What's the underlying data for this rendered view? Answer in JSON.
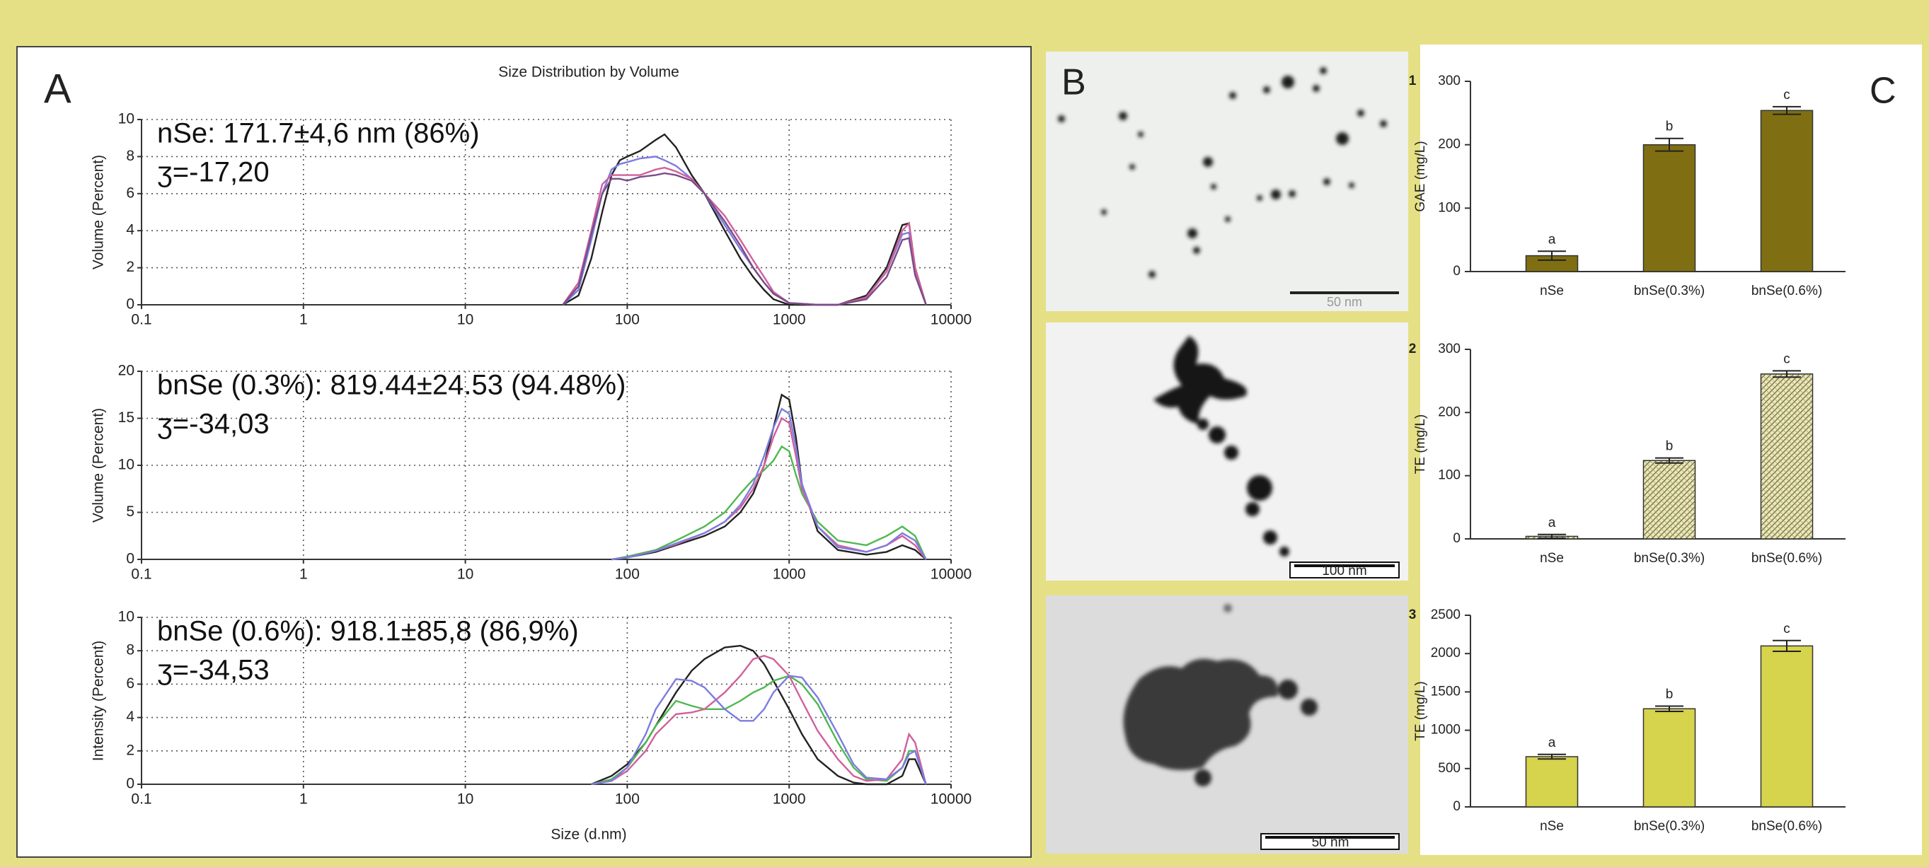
{
  "panels": [
    "A",
    "B",
    "C"
  ],
  "images": [
    {
      "scale_bar": "50 nm"
    },
    {
      "scale_bar": "100 nm"
    },
    {
      "scale_bar": "50 nm"
    }
  ],
  "chart_data": [
    {
      "type": "line",
      "title": "Size Distribution by Volume",
      "ylabel": "Volume (Percent)",
      "log_x": true,
      "grid": true,
      "annotations": [
        "nSe: 171.7±4,6 nm (86%)",
        "ʒ=-17,20"
      ],
      "xlim": [
        0.1,
        10000
      ],
      "xticks": [
        0.1,
        1,
        10,
        100,
        1000,
        10000
      ],
      "ylim": [
        0,
        10
      ],
      "yticks": [
        0,
        2,
        4,
        6,
        8,
        10
      ],
      "x": [
        40,
        50,
        60,
        70,
        80,
        90,
        100,
        120,
        150,
        170,
        200,
        250,
        300,
        400,
        500,
        600,
        700,
        800,
        1000,
        1500,
        2000,
        3000,
        4000,
        5000,
        5500,
        6000,
        7000
      ],
      "series": [
        {
          "color": "#222222",
          "values": [
            0,
            0.5,
            2.5,
            5,
            7,
            7.8,
            8,
            8.3,
            8.9,
            9.2,
            8.5,
            7,
            6,
            4,
            2.5,
            1.5,
            0.8,
            0.3,
            0,
            0,
            0,
            0.5,
            2,
            4.3,
            4.4,
            2,
            0
          ]
        },
        {
          "color": "#7c7ce0",
          "values": [
            0,
            0.8,
            3.5,
            6,
            7.3,
            7.6,
            7.7,
            7.9,
            8,
            7.8,
            7.5,
            6.8,
            6,
            4.3,
            3,
            2,
            1.2,
            0.6,
            0.1,
            0,
            0,
            0.4,
            1.8,
            3.8,
            3.9,
            1.8,
            0
          ]
        },
        {
          "color": "#d0609a",
          "values": [
            0,
            1.2,
            4,
            6.5,
            7,
            7,
            7,
            7,
            7.3,
            7.4,
            7.2,
            6.8,
            6,
            4.8,
            3.5,
            2.4,
            1.5,
            0.7,
            0.1,
            0,
            0,
            0.4,
            1.8,
            4,
            4.4,
            2,
            0
          ]
        },
        {
          "color": "#7a4d8a",
          "values": [
            0,
            1,
            3.8,
            6,
            6.8,
            6.8,
            6.7,
            6.9,
            7,
            7.1,
            7,
            6.7,
            6,
            4.5,
            3.2,
            2,
            1.2,
            0.6,
            0.1,
            0,
            0,
            0.3,
            1.5,
            3.5,
            3.6,
            1.6,
            0
          ]
        }
      ]
    },
    {
      "type": "line",
      "ylabel": "Volume (Percent)",
      "log_x": true,
      "grid": true,
      "annotations": [
        "bnSe (0.3%): 819.44±24.53 (94.48%)",
        "ʒ=-34,03"
      ],
      "xlim": [
        0.1,
        10000
      ],
      "xticks": [
        0.1,
        1,
        10,
        100,
        1000,
        10000
      ],
      "ylim": [
        0,
        20
      ],
      "yticks": [
        0,
        5,
        10,
        15,
        20
      ],
      "x": [
        80,
        100,
        150,
        200,
        300,
        400,
        500,
        600,
        700,
        800,
        900,
        1000,
        1100,
        1200,
        1500,
        2000,
        3000,
        4000,
        5000,
        6000,
        7000
      ],
      "series": [
        {
          "color": "#222222",
          "values": [
            0,
            0.2,
            0.8,
            1.5,
            2.5,
            3.5,
            5,
            7,
            10,
            14,
            17.5,
            17,
            13,
            8,
            3,
            1,
            0.5,
            0.8,
            1.5,
            1,
            0
          ]
        },
        {
          "color": "#4fb84f",
          "values": [
            0,
            0.3,
            1,
            2,
            3.5,
            5,
            7,
            8.5,
            9.5,
            10.5,
            12,
            11.5,
            9,
            7,
            4,
            2,
            1.5,
            2.5,
            3.5,
            2.5,
            0
          ]
        },
        {
          "color": "#d0609a",
          "values": [
            0,
            0.2,
            0.9,
            1.6,
            2.8,
            4,
            5.5,
            7.5,
            10,
            13,
            15,
            14.5,
            11,
            7.5,
            3.5,
            1.5,
            0.8,
            1.5,
            2.5,
            1.5,
            0
          ]
        },
        {
          "color": "#7c7ce0",
          "values": [
            0,
            0.2,
            0.9,
            1.7,
            2.8,
            4,
            5.8,
            8,
            11,
            14,
            16,
            15.5,
            12,
            8,
            3.5,
            1.3,
            0.8,
            1.5,
            2.8,
            2,
            0
          ]
        }
      ]
    },
    {
      "type": "line",
      "ylabel": "Intensity (Percent)",
      "xlabel": "Size (d.nm)",
      "log_x": true,
      "grid": true,
      "annotations": [
        "bnSe (0.6%): 918.1±85,8 (86,9%)",
        "ʒ=-34,53"
      ],
      "xlim": [
        0.1,
        10000
      ],
      "xticks": [
        0.1,
        1,
        10,
        100,
        1000,
        10000
      ],
      "ylim": [
        0,
        10
      ],
      "yticks": [
        0,
        2,
        4,
        6,
        8,
        10
      ],
      "x": [
        60,
        80,
        100,
        130,
        150,
        200,
        250,
        300,
        400,
        500,
        600,
        700,
        800,
        1000,
        1200,
        1500,
        2000,
        2500,
        3000,
        4000,
        5000,
        5500,
        6000,
        7000
      ],
      "series": [
        {
          "color": "#222222",
          "values": [
            0,
            0.5,
            1.2,
            2.5,
            3.5,
            5.5,
            6.8,
            7.5,
            8.2,
            8.3,
            8,
            7.2,
            6.2,
            4.5,
            3,
            1.5,
            0.5,
            0.1,
            0,
            0,
            0.5,
            1.5,
            1.5,
            0
          ]
        },
        {
          "color": "#4fb84f",
          "values": [
            0,
            0.3,
            1,
            2.5,
            3.5,
            5,
            4.7,
            4.5,
            4.5,
            5,
            5.5,
            5.8,
            6.2,
            6.5,
            6,
            4.8,
            2.5,
            1,
            0.3,
            0.2,
            1,
            2,
            2,
            0
          ]
        },
        {
          "color": "#d0609a",
          "values": [
            0,
            0.2,
            0.8,
            2,
            3,
            4.2,
            4.3,
            4.5,
            5.5,
            6.5,
            7.5,
            7.7,
            7.5,
            6.5,
            5,
            3.2,
            1.5,
            0.5,
            0.2,
            0.3,
            1.5,
            3,
            2.5,
            0
          ]
        },
        {
          "color": "#7c7ce0",
          "values": [
            0,
            0.2,
            1,
            3,
            4.5,
            6.3,
            6.2,
            5.8,
            4.5,
            3.8,
            3.8,
            4.5,
            5.5,
            6.5,
            6.4,
            5.2,
            3,
            1.2,
            0.4,
            0.3,
            1,
            1.8,
            2,
            0
          ]
        }
      ]
    },
    {
      "type": "bar",
      "label": "1",
      "ylabel": "GAE (mg/L)",
      "color": "#7f6f12",
      "hatch": false,
      "categories": [
        "nSe",
        "bnSe(0.3%)",
        "bnSe(0.6%)"
      ],
      "values": [
        25,
        200,
        254
      ],
      "errors": [
        7,
        10,
        6
      ],
      "significance": [
        "a",
        "b",
        "c"
      ],
      "ylim": [
        0,
        300
      ],
      "yticks": [
        0,
        100,
        200,
        300
      ]
    },
    {
      "type": "bar",
      "label": "2",
      "ylabel": "TE (mg/L)",
      "color": "#d9d59a",
      "hatch": true,
      "categories": [
        "nSe",
        "bnSe(0.3%)",
        "bnSe(0.6%)"
      ],
      "values": [
        4,
        124,
        261
      ],
      "errors": [
        3,
        4,
        5
      ],
      "significance": [
        "a",
        "b",
        "c"
      ],
      "ylim": [
        0,
        300
      ],
      "yticks": [
        0,
        100,
        200,
        300
      ]
    },
    {
      "type": "bar",
      "label": "3",
      "ylabel": "TE (mg/L)",
      "color": "#d6d34c",
      "hatch": false,
      "categories": [
        "nSe",
        "bnSe(0.3%)",
        "bnSe(0.6%)"
      ],
      "values": [
        655,
        1280,
        2100
      ],
      "errors": [
        30,
        35,
        70
      ],
      "significance": [
        "a",
        "b",
        "c"
      ],
      "ylim": [
        0,
        2500
      ],
      "yticks": [
        0,
        500,
        1000,
        1500,
        2000,
        2500
      ]
    }
  ]
}
